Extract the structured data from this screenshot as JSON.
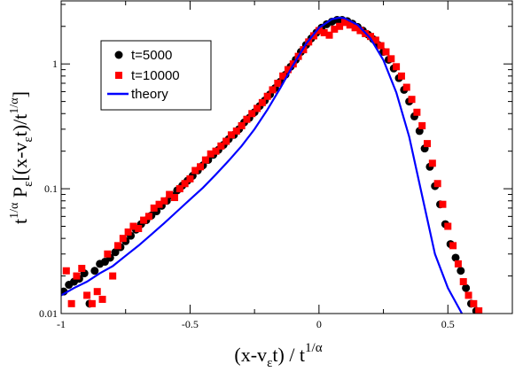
{
  "chart_data": {
    "type": "scatter",
    "xlim": [
      -1.0,
      0.75
    ],
    "ylim": [
      0.01,
      3.2
    ],
    "yscale": "log",
    "grid": false,
    "legend_position": "top-left",
    "x_ticks": [
      -1,
      -0.5,
      0,
      0.5
    ],
    "x_tick_labels": [
      "-1",
      "-0.5",
      "0",
      "0.5"
    ],
    "y_ticks": [
      0.01,
      0.1,
      1
    ],
    "y_tick_labels": [
      "0.01",
      "0.1",
      "1"
    ],
    "xlabel": {
      "main": "(x-v",
      "sub": "ε",
      "rest": "t) / t",
      "sup": "1/α"
    },
    "ylabel": {
      "pre": "t",
      "pre_sup": "1/α",
      "p": " P",
      "p_sub": "ε",
      "bracket": "[(x-v",
      "b_sub": "ε",
      "b_rest": "t)/t",
      "b_sup": "1/α",
      "close": "]"
    },
    "legend": [
      {
        "label": "t=5000",
        "marker": "circle",
        "color": "#000000"
      },
      {
        "label": "t=10000",
        "marker": "square",
        "color": "#ff0000"
      },
      {
        "label": "theory",
        "marker": "line",
        "color": "#0000ff"
      }
    ],
    "series": [
      {
        "name": "t=5000",
        "marker": "circle",
        "color": "#000000",
        "x": [
          -0.99,
          -0.97,
          -0.95,
          -0.93,
          -0.91,
          -0.89,
          -0.87,
          -0.85,
          -0.83,
          -0.81,
          -0.79,
          -0.77,
          -0.75,
          -0.73,
          -0.71,
          -0.69,
          -0.67,
          -0.65,
          -0.63,
          -0.61,
          -0.59,
          -0.57,
          -0.55,
          -0.53,
          -0.51,
          -0.49,
          -0.47,
          -0.45,
          -0.43,
          -0.41,
          -0.39,
          -0.37,
          -0.35,
          -0.33,
          -0.31,
          -0.29,
          -0.27,
          -0.25,
          -0.23,
          -0.21,
          -0.19,
          -0.17,
          -0.15,
          -0.13,
          -0.11,
          -0.09,
          -0.07,
          -0.05,
          -0.03,
          -0.01,
          0.01,
          0.03,
          0.05,
          0.07,
          0.09,
          0.11,
          0.13,
          0.15,
          0.17,
          0.19,
          0.21,
          0.23,
          0.25,
          0.27,
          0.29,
          0.31,
          0.33,
          0.35,
          0.37,
          0.39,
          0.41,
          0.43,
          0.45,
          0.47,
          0.49,
          0.51,
          0.53,
          0.55,
          0.57,
          0.59,
          0.61
        ],
        "y": [
          0.015,
          0.017,
          0.018,
          0.019,
          0.021,
          0.012,
          0.022,
          0.025,
          0.026,
          0.028,
          0.031,
          0.034,
          0.038,
          0.042,
          0.047,
          0.052,
          0.056,
          0.061,
          0.066,
          0.073,
          0.08,
          0.088,
          0.097,
          0.106,
          0.116,
          0.127,
          0.14,
          0.154,
          0.17,
          0.187,
          0.205,
          0.225,
          0.25,
          0.27,
          0.3,
          0.34,
          0.37,
          0.41,
          0.46,
          0.51,
          0.57,
          0.64,
          0.72,
          0.82,
          0.95,
          1.08,
          1.25,
          1.42,
          1.6,
          1.78,
          1.95,
          2.08,
          2.18,
          2.25,
          2.25,
          2.2,
          2.1,
          1.98,
          1.85,
          1.72,
          1.58,
          1.42,
          1.25,
          1.08,
          0.92,
          0.77,
          0.62,
          0.5,
          0.38,
          0.29,
          0.21,
          0.15,
          0.105,
          0.075,
          0.052,
          0.036,
          0.028,
          0.022,
          0.016,
          0.012,
          0.0105
        ]
      },
      {
        "name": "t=10000",
        "marker": "square",
        "color": "#ff0000",
        "x": [
          -0.98,
          -0.96,
          -0.94,
          -0.92,
          -0.9,
          -0.88,
          -0.86,
          -0.84,
          -0.82,
          -0.8,
          -0.78,
          -0.76,
          -0.74,
          -0.72,
          -0.7,
          -0.68,
          -0.66,
          -0.64,
          -0.62,
          -0.6,
          -0.58,
          -0.56,
          -0.54,
          -0.52,
          -0.5,
          -0.48,
          -0.46,
          -0.44,
          -0.42,
          -0.4,
          -0.38,
          -0.36,
          -0.34,
          -0.32,
          -0.3,
          -0.28,
          -0.26,
          -0.24,
          -0.22,
          -0.2,
          -0.18,
          -0.16,
          -0.14,
          -0.12,
          -0.1,
          -0.08,
          -0.06,
          -0.04,
          -0.02,
          0.0,
          0.02,
          0.04,
          0.06,
          0.08,
          0.1,
          0.12,
          0.14,
          0.16,
          0.18,
          0.2,
          0.22,
          0.24,
          0.26,
          0.28,
          0.3,
          0.32,
          0.34,
          0.36,
          0.38,
          0.4,
          0.42,
          0.44,
          0.46,
          0.48,
          0.5,
          0.52,
          0.54,
          0.56,
          0.58,
          0.6,
          0.62
        ],
        "y": [
          0.022,
          0.012,
          0.02,
          0.023,
          0.014,
          0.012,
          0.015,
          0.013,
          0.03,
          0.02,
          0.035,
          0.04,
          0.045,
          0.05,
          0.048,
          0.056,
          0.06,
          0.07,
          0.075,
          0.08,
          0.09,
          0.085,
          0.1,
          0.11,
          0.12,
          0.14,
          0.15,
          0.17,
          0.19,
          0.2,
          0.22,
          0.24,
          0.27,
          0.29,
          0.32,
          0.36,
          0.4,
          0.44,
          0.49,
          0.55,
          0.62,
          0.7,
          0.8,
          0.9,
          1.0,
          1.15,
          1.3,
          1.5,
          1.68,
          1.85,
          1.78,
          1.7,
          1.9,
          2.0,
          2.15,
          2.05,
          1.95,
          1.85,
          1.75,
          1.66,
          1.55,
          1.4,
          1.25,
          1.1,
          0.95,
          0.8,
          0.65,
          0.52,
          0.41,
          0.32,
          0.23,
          0.16,
          0.11,
          0.075,
          0.05,
          0.035,
          0.025,
          0.018,
          0.014,
          0.012,
          0.0105
        ]
      },
      {
        "name": "theory",
        "marker": "line",
        "color": "#0000ff",
        "x": [
          -1.0,
          -0.95,
          -0.9,
          -0.85,
          -0.8,
          -0.75,
          -0.7,
          -0.65,
          -0.6,
          -0.55,
          -0.5,
          -0.45,
          -0.4,
          -0.35,
          -0.3,
          -0.25,
          -0.2,
          -0.15,
          -0.1,
          -0.05,
          0.0,
          0.05,
          0.08,
          0.1,
          0.15,
          0.2,
          0.25,
          0.3,
          0.35,
          0.4,
          0.45,
          0.5,
          0.55,
          0.56
        ],
        "y": [
          0.014,
          0.016,
          0.018,
          0.021,
          0.024,
          0.029,
          0.035,
          0.043,
          0.053,
          0.066,
          0.082,
          0.102,
          0.13,
          0.168,
          0.22,
          0.3,
          0.43,
          0.64,
          0.98,
          1.45,
          1.95,
          2.28,
          2.35,
          2.32,
          2.06,
          1.6,
          1.07,
          0.59,
          0.26,
          0.088,
          0.03,
          0.016,
          0.0104,
          0.0095
        ]
      }
    ]
  }
}
